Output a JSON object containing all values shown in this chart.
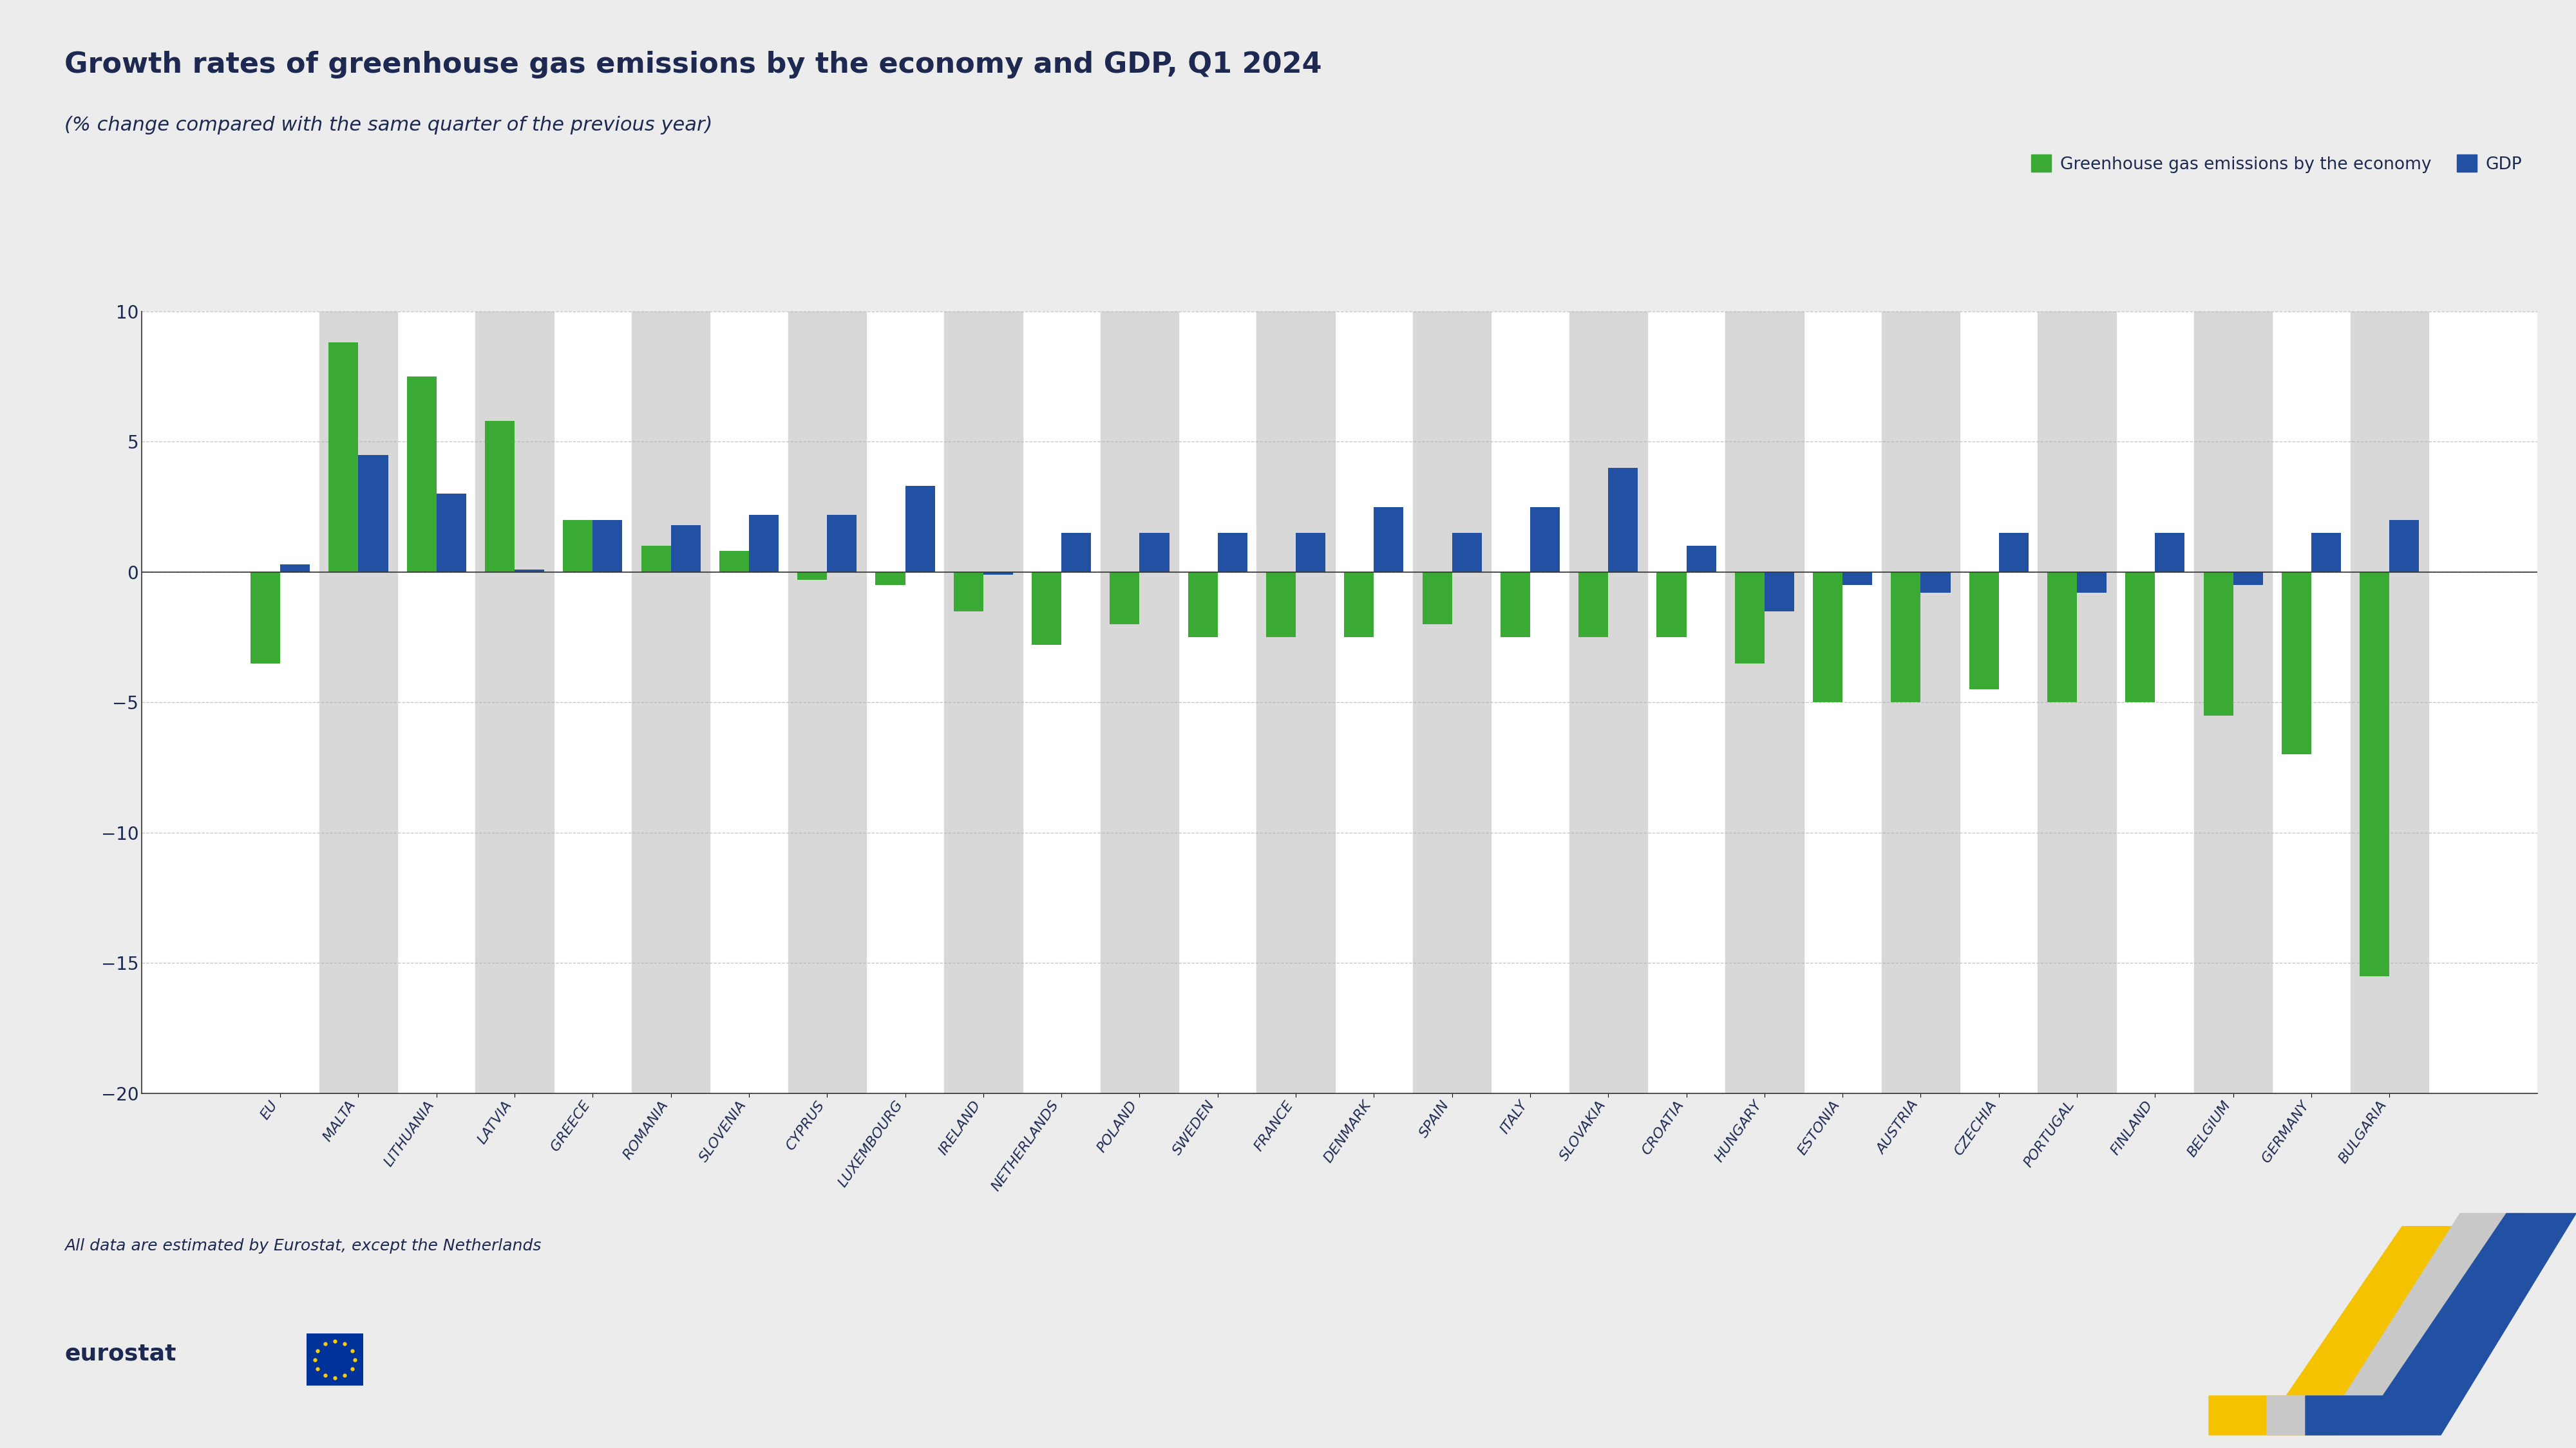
{
  "title": "Growth rates of greenhouse gas emissions by the economy and GDP, Q1 2024",
  "subtitle": "(% change compared with the same quarter of the previous year)",
  "categories": [
    "EU",
    "MALTA",
    "LITHUANIA",
    "LATVIA",
    "GREECE",
    "ROMANIA",
    "SLOVENIA",
    "CYPRUS",
    "LUXEMBOURG",
    "IRELAND",
    "NETHERLANDS",
    "POLAND",
    "SWEDEN",
    "FRANCE",
    "DENMARK",
    "SPAIN",
    "ITALY",
    "SLOVAKIA",
    "CROATIA",
    "HUNGARY",
    "ESTONIA",
    "AUSTRIA",
    "CZECHIA",
    "PORTUGAL",
    "FINLAND",
    "BELGIUM",
    "GERMANY",
    "BULGARIA"
  ],
  "ghg": [
    -3.5,
    8.8,
    7.5,
    5.8,
    2.0,
    1.0,
    0.8,
    -0.3,
    -0.5,
    -1.5,
    -2.8,
    -2.0,
    -2.5,
    -2.5,
    -2.5,
    -2.0,
    -2.5,
    -2.5,
    -2.5,
    -3.5,
    -5.0,
    -5.0,
    -4.5,
    -5.0,
    -5.0,
    -5.5,
    -7.0,
    -15.5
  ],
  "gdp": [
    0.3,
    4.5,
    3.0,
    0.1,
    2.0,
    1.8,
    2.2,
    2.2,
    3.3,
    -0.1,
    1.5,
    1.5,
    1.5,
    1.5,
    2.5,
    1.5,
    2.5,
    4.0,
    1.0,
    -1.5,
    -0.5,
    -0.8,
    1.5,
    -0.8,
    1.5,
    -0.5,
    1.5,
    2.0
  ],
  "ghg_color": "#3aaa35",
  "gdp_color": "#2251a3",
  "background_color": "#ececec",
  "plot_bg_white": "#ffffff",
  "stripe_color": "#d8d8d8",
  "ylim": [
    -20,
    10
  ],
  "yticks": [
    -20,
    -15,
    -10,
    -5,
    0,
    5,
    10
  ],
  "footnote": "All data are estimated by Eurostat, except the Netherlands",
  "legend_label_ghg": "Greenhouse gas emissions by the economy",
  "legend_label_gdp": "GDP",
  "title_color": "#1d2951",
  "axis_color": "#333333",
  "grid_color": "#aaaaaa"
}
